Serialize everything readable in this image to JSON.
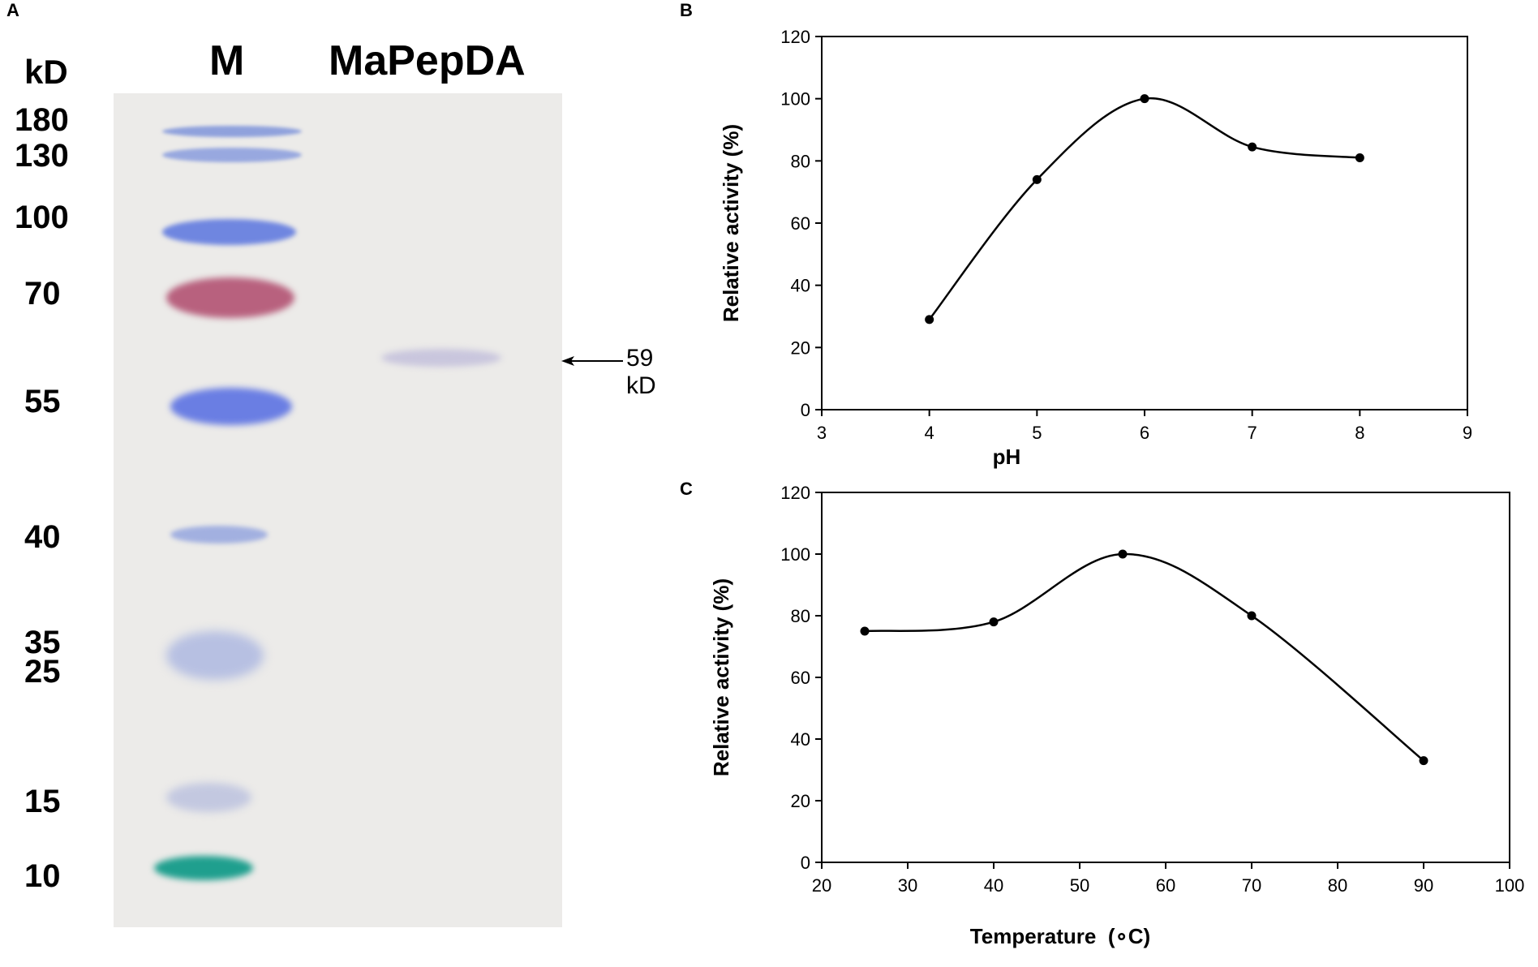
{
  "gel": {
    "panel_letter": "A",
    "unit_label": "kD",
    "lane_marker": "M",
    "lane_sample": "MaPepDA",
    "markers": [
      "180",
      "130",
      "100",
      "70",
      "55",
      "40",
      "35",
      "25",
      "15",
      "10"
    ],
    "annotation": "59 kD",
    "band_colors": {
      "blue": "#6f86e0",
      "red": "#b8617e",
      "green": "#1f9f8e",
      "sample": "#c9c6dd"
    }
  },
  "chart_data": [
    {
      "type": "line",
      "panel_letter": "B",
      "title": "",
      "xlabel": "pH",
      "ylabel": "Relative activity (%)",
      "x": [
        4,
        5,
        6,
        7,
        8
      ],
      "y": [
        29,
        74,
        100,
        84.5,
        81
      ],
      "xlim": [
        3,
        9
      ],
      "ylim": [
        0,
        120
      ],
      "xticks": [
        "3",
        "4",
        "5",
        "6",
        "7",
        "8",
        "9"
      ],
      "yticks": [
        "0",
        "20",
        "40",
        "60",
        "80",
        "100",
        "120"
      ],
      "grid": false,
      "smooth": true
    },
    {
      "type": "line",
      "panel_letter": "C",
      "title": "",
      "xlabel": "Temperature  (∘C)",
      "ylabel": "Relative activity (%)",
      "x": [
        25,
        40,
        55,
        70,
        90
      ],
      "y": [
        75,
        78,
        100,
        80,
        33
      ],
      "xlim": [
        20,
        100
      ],
      "ylim": [
        0,
        120
      ],
      "xticks": [
        "20",
        "30",
        "40",
        "50",
        "60",
        "70",
        "80",
        "90",
        "100"
      ],
      "yticks": [
        "0",
        "20",
        "40",
        "60",
        "80",
        "100",
        "120"
      ],
      "grid": false,
      "smooth": true
    }
  ]
}
